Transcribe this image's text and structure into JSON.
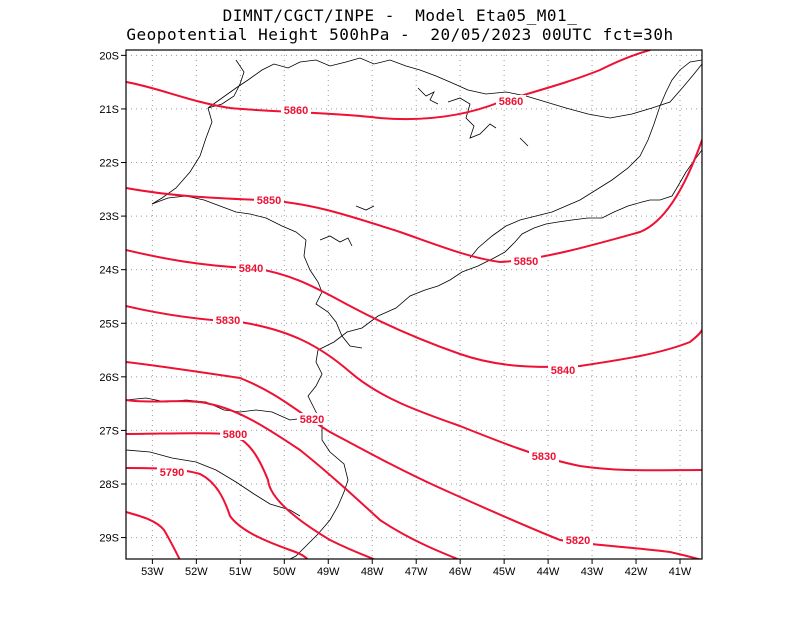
{
  "title": {
    "line1": "DIMNT/CGCT/INPE -  Model Eta05_M01_",
    "line2": "Geopotential Height 500hPa -  20/05/2023 00UTC fct=30h"
  },
  "map": {
    "lon_range": [
      -53.6,
      -40.5
    ],
    "lat_range": [
      -29.4,
      -19.9
    ],
    "lon_ticks": [
      "53W",
      "52W",
      "51W",
      "50W",
      "49W",
      "48W",
      "47W",
      "46W",
      "45W",
      "44W",
      "43W",
      "42W",
      "41W"
    ],
    "lat_ticks": [
      "20S",
      "21S",
      "22S",
      "23S",
      "24S",
      "25S",
      "26S",
      "27S",
      "28S",
      "29S"
    ],
    "contour_color": "#ee1133",
    "label_color": "#ee1133",
    "coast_color": "#000000",
    "grid": "dotted"
  },
  "contours": [
    {
      "value": "5860",
      "label": "5860",
      "label_pos": "central-west and east"
    },
    {
      "value": "5850",
      "label": "5850",
      "label_pos": "west and east"
    },
    {
      "value": "5840",
      "label": "5840",
      "label_pos": "west and south-east"
    },
    {
      "value": "5830",
      "label": "5830",
      "label_pos": "west and south-east"
    },
    {
      "value": "5820",
      "label": "5820",
      "label_pos": "centre and south-east"
    },
    {
      "value": "5810",
      "label": "",
      "label_pos": ""
    },
    {
      "value": "5800",
      "label": "5800",
      "label_pos": "south-west"
    },
    {
      "value": "5790",
      "label": "5790",
      "label_pos": "south-west"
    },
    {
      "value": "5780",
      "label": "",
      "label_pos": ""
    }
  ]
}
